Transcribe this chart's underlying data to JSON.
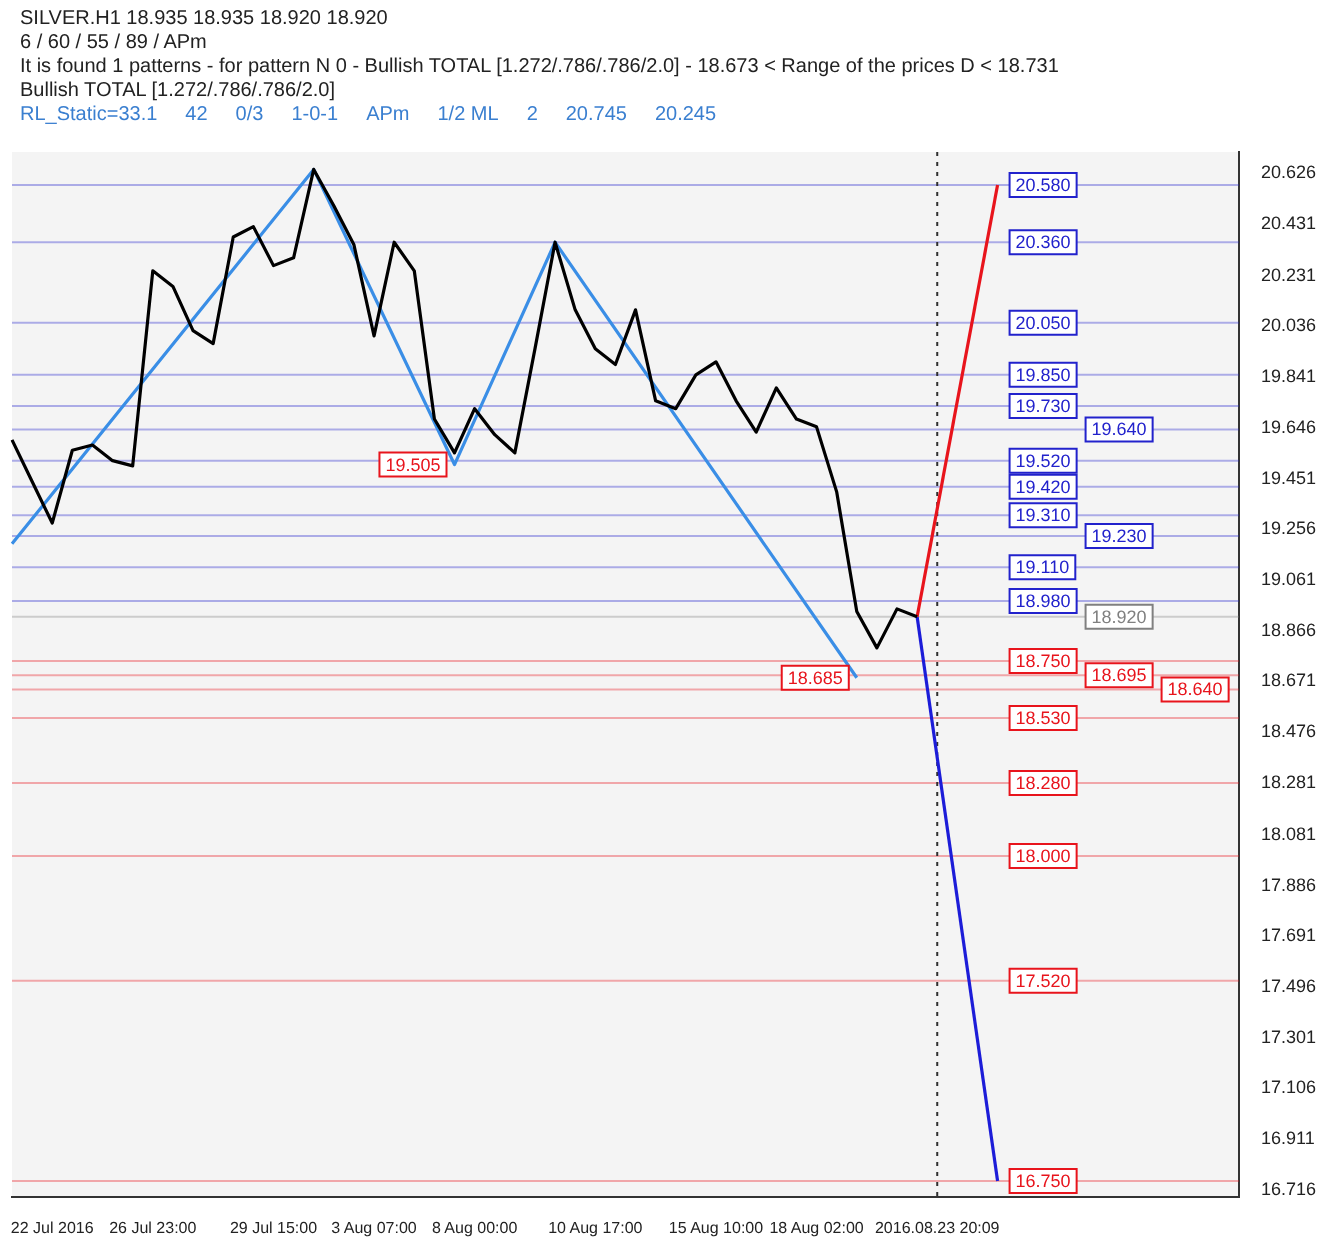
{
  "chart_data": {
    "type": "line",
    "title": "SILVER.H1 18.935 18.935 18.920 18.920",
    "subtitle": "6 / 60 / 55 / 89 / APm",
    "annotations": [
      "It is found 1 patterns - for pattern N 0 - Bullish TOTAL [1.272/.786/.786/2.0] - 18.673 < Range of the prices D < 18.731",
      "RL_Static=33.1",
      "42",
      "0/3",
      "1-0-1",
      "Bullish TOTAL [1.272/.786/.786/2.0]",
      "APm",
      "1/2 ML",
      "2",
      "20.745",
      "20.245"
    ],
    "categories": [
      null,
      null,
      "22 Jul 2016",
      null,
      null,
      null,
      null,
      "26 Jul 23:00",
      null,
      null,
      null,
      null,
      null,
      "29 Jul 15:00",
      null,
      null,
      null,
      null,
      "3 Aug 07:00",
      null,
      null,
      null,
      null,
      "8 Aug 00:00",
      null,
      null,
      null,
      null,
      null,
      "10 Aug 17:00",
      null,
      null,
      null,
      null,
      null,
      "15 Aug 10:00",
      null,
      null,
      null,
      null,
      "18 Aug 02:00",
      null,
      null,
      null,
      null,
      null,
      "2016.08.23 20:09",
      null,
      null,
      null,
      null,
      null,
      null,
      null,
      null,
      null,
      null,
      null,
      null,
      null,
      null,
      null
    ],
    "ylim": [
      16.689,
      20.707
    ],
    "yticks": [
      20.626,
      20.431,
      20.231,
      20.036,
      19.841,
      19.646,
      19.451,
      19.256,
      19.061,
      18.866,
      18.671,
      18.476,
      18.281,
      18.081,
      17.886,
      17.691,
      17.496,
      17.301,
      17.106,
      16.911,
      16.716
    ],
    "grid": false,
    "legend": false,
    "ref_lines": [
      {
        "axis": "y",
        "value": 20.58,
        "label": "20.580",
        "color": "#2222cc"
      },
      {
        "axis": "y",
        "value": 20.36,
        "label": "20.360",
        "color": "#2222cc"
      },
      {
        "axis": "y",
        "value": 20.05,
        "label": "20.050",
        "color": "#2222cc"
      },
      {
        "axis": "y",
        "value": 19.85,
        "label": "19.850",
        "color": "#2222cc"
      },
      {
        "axis": "y",
        "value": 19.73,
        "label": "19.730",
        "color": "#2222cc"
      },
      {
        "axis": "y",
        "value": 19.64,
        "label": "19.640",
        "color": "#2222cc"
      },
      {
        "axis": "y",
        "value": 19.52,
        "label": "19.520",
        "color": "#2222cc"
      },
      {
        "axis": "y",
        "value": 19.42,
        "label": "19.420",
        "color": "#2222cc"
      },
      {
        "axis": "y",
        "value": 19.31,
        "label": "19.310",
        "color": "#2222cc"
      },
      {
        "axis": "y",
        "value": 19.23,
        "label": "19.230",
        "color": "#2222cc"
      },
      {
        "axis": "y",
        "value": 19.11,
        "label": "19.110",
        "color": "#2222cc"
      },
      {
        "axis": "y",
        "value": 18.98,
        "label": "18.980",
        "color": "#2222cc"
      },
      {
        "axis": "y",
        "value": 18.92,
        "label": "18.920",
        "color": "#808080"
      },
      {
        "axis": "y",
        "value": 18.75,
        "label": "18.750",
        "color": "#e8141c"
      },
      {
        "axis": "y",
        "value": 18.695,
        "label": "18.695",
        "color": "#e8141c"
      },
      {
        "axis": "y",
        "value": 18.64,
        "label": "18.640",
        "color": "#e8141c"
      },
      {
        "axis": "y",
        "value": 18.53,
        "label": "18.530",
        "color": "#e8141c"
      },
      {
        "axis": "y",
        "value": 18.28,
        "label": "18.280",
        "color": "#e8141c"
      },
      {
        "axis": "y",
        "value": 18,
        "label": "18.000",
        "color": "#e8141c"
      },
      {
        "axis": "y",
        "value": 17.52,
        "label": "17.520",
        "color": "#e8141c"
      },
      {
        "axis": "y",
        "value": 16.75,
        "label": "16.750",
        "color": "#e8141c"
      },
      {
        "axis": "x",
        "value": "2016.08.23 20:09",
        "color": "#303030",
        "line_style": "dotted"
      }
    ],
    "series": [
      {
        "color": "#000000",
        "marker": "none",
        "values": [
          19.6,
          19.44,
          19.28,
          19.56,
          19.58,
          19.52,
          19.5,
          20.25,
          20.19,
          20.02,
          19.97,
          20.38,
          20.42,
          20.27,
          20.3,
          20.64,
          20.5,
          20.35,
          20.0,
          20.36,
          20.25,
          19.68,
          19.55,
          19.72,
          19.62,
          19.55,
          19.95,
          20.36,
          20.1,
          19.95,
          19.89,
          20.1,
          19.75,
          19.72,
          19.85,
          19.9,
          19.75,
          19.63,
          19.8,
          19.68,
          19.65,
          19.4,
          18.94,
          18.8,
          18.95,
          18.92,
          null,
          null,
          null,
          null,
          null,
          null,
          null,
          null,
          null,
          null,
          null,
          null,
          null,
          null,
          null,
          null
        ]
      },
      {
        "color": "#3a8ee6",
        "marker": "none",
        "line_style": "solid",
        "values": [
          19.2,
          null,
          null,
          null,
          null,
          null,
          null,
          null,
          null,
          null,
          null,
          null,
          null,
          null,
          null,
          20.64,
          null,
          null,
          null,
          null,
          null,
          null,
          19.505,
          null,
          null,
          null,
          null,
          20.36,
          null,
          null,
          null,
          null,
          null,
          null,
          null,
          null,
          null,
          null,
          null,
          null,
          null,
          null,
          18.685,
          null,
          null,
          null,
          null,
          null,
          null,
          null,
          null,
          null,
          null,
          null,
          null,
          null,
          null,
          null,
          null,
          null,
          null,
          null
        ],
        "value_labels": [
          null,
          null,
          null,
          null,
          null,
          null,
          null,
          null,
          null,
          null,
          null,
          null,
          null,
          null,
          null,
          null,
          null,
          null,
          null,
          null,
          null,
          null,
          "19.505",
          null,
          null,
          null,
          null,
          null,
          null,
          null,
          null,
          null,
          null,
          null,
          null,
          null,
          null,
          null,
          null,
          null,
          null,
          null,
          "18.685",
          null,
          null,
          null,
          null,
          null,
          null,
          null,
          null,
          null,
          null,
          null,
          null,
          null,
          null,
          null,
          null,
          null,
          null,
          null
        ]
      },
      {
        "color": "#e8141c",
        "marker": "none",
        "line_style": "solid",
        "values": [
          null,
          null,
          null,
          null,
          null,
          null,
          null,
          null,
          null,
          null,
          null,
          null,
          null,
          null,
          null,
          null,
          null,
          null,
          null,
          null,
          null,
          null,
          null,
          null,
          null,
          null,
          null,
          null,
          null,
          null,
          null,
          null,
          null,
          null,
          null,
          null,
          null,
          null,
          null,
          null,
          null,
          null,
          null,
          null,
          null,
          18.92,
          null,
          null,
          null,
          20.58,
          null,
          null,
          null,
          null,
          null,
          null,
          null,
          null,
          null,
          null,
          null,
          null
        ]
      },
      {
        "color": "#1c1cd8",
        "marker": "none",
        "line_style": "solid",
        "values": [
          null,
          null,
          null,
          null,
          null,
          null,
          null,
          null,
          null,
          null,
          null,
          null,
          null,
          null,
          null,
          null,
          null,
          null,
          null,
          null,
          null,
          null,
          null,
          null,
          null,
          null,
          null,
          null,
          null,
          null,
          null,
          null,
          null,
          null,
          null,
          null,
          null,
          null,
          null,
          null,
          null,
          null,
          null,
          null,
          null,
          18.92,
          null,
          null,
          null,
          16.75,
          null,
          null,
          null,
          null,
          null,
          null,
          null,
          null,
          null,
          null,
          null,
          null
        ]
      }
    ]
  }
}
